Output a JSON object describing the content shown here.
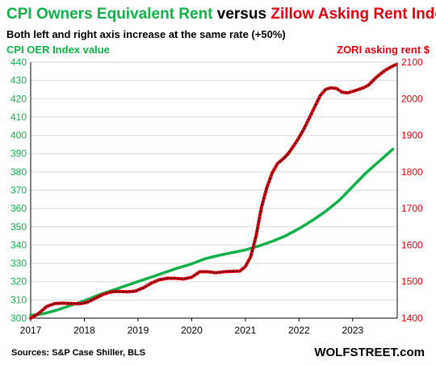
{
  "chart_data": {
    "type": "line",
    "title_parts": {
      "green": "CPI Owners Equivalent Rent",
      "versus": "versus",
      "red": "Zillow Asking Rent Index"
    },
    "subtitle": "Both left and right axis increase at the same rate (+50%)",
    "y_left_label": "CPI OER  Index value",
    "y_right_label": "ZORI asking rent $",
    "source": "Sources: S&P Case Shiller, BLS",
    "brand": "WOLFSTREET.com",
    "x_range": [
      2017.0,
      2023.83
    ],
    "x_ticks": [
      "2017",
      "2018",
      "2019",
      "2020",
      "2021",
      "2022",
      "2023"
    ],
    "y_left_range": [
      300,
      440
    ],
    "y_left_ticks": [
      "300",
      "310",
      "320",
      "330",
      "340",
      "350",
      "360",
      "370",
      "380",
      "390",
      "400",
      "410",
      "420",
      "430",
      "440"
    ],
    "y_right_range": [
      1400,
      2100
    ],
    "y_right_ticks": [
      "1400",
      "1500",
      "1600",
      "1700",
      "1800",
      "1900",
      "2000",
      "2100"
    ],
    "colors": {
      "green": "#12b04a",
      "red": "#e3000f",
      "dots": "#000000",
      "grid": "#d9d9d9"
    },
    "grid": true,
    "series": [
      {
        "name": "CPI Owners Equivalent Rent",
        "axis": "left",
        "color": "#12b04a",
        "x": [
          2017.0,
          2017.25,
          2017.5,
          2017.75,
          2018.0,
          2018.25,
          2018.5,
          2018.75,
          2019.0,
          2019.25,
          2019.5,
          2019.75,
          2020.0,
          2020.25,
          2020.5,
          2020.75,
          2021.0,
          2021.25,
          2021.5,
          2021.75,
          2022.0,
          2022.25,
          2022.5,
          2022.75,
          2023.0,
          2023.25,
          2023.5,
          2023.75
        ],
        "y": [
          301.5,
          302.5,
          304.5,
          307.0,
          309.5,
          312.5,
          315.0,
          317.5,
          320.0,
          322.5,
          325.0,
          327.5,
          329.7,
          332.5,
          334.3,
          335.8,
          337.3,
          339.5,
          342.0,
          345.0,
          349.0,
          353.5,
          358.5,
          364.5,
          372.0,
          379.5,
          386.0,
          392.5
        ]
      },
      {
        "name": "Zillow Asking Rent Index",
        "axis": "right",
        "color": "#e3000f",
        "x": [
          2017.0,
          2017.15,
          2017.3,
          2017.45,
          2017.6,
          2017.75,
          2017.9,
          2018.05,
          2018.2,
          2018.35,
          2018.5,
          2018.65,
          2018.8,
          2018.95,
          2019.1,
          2019.25,
          2019.4,
          2019.55,
          2019.7,
          2019.85,
          2020.0,
          2020.15,
          2020.3,
          2020.45,
          2020.6,
          2020.75,
          2020.9,
          2021.0,
          2021.1,
          2021.2,
          2021.3,
          2021.4,
          2021.5,
          2021.6,
          2021.7,
          2021.8,
          2021.9,
          2022.0,
          2022.1,
          2022.2,
          2022.3,
          2022.4,
          2022.5,
          2022.6,
          2022.7,
          2022.8,
          2022.9,
          2023.0,
          2023.1,
          2023.2,
          2023.3,
          2023.4,
          2023.5,
          2023.6,
          2023.7,
          2023.8
        ],
        "y": [
          1400,
          1413,
          1432,
          1440,
          1441,
          1440,
          1439,
          1443,
          1454,
          1465,
          1472,
          1473,
          1472,
          1474,
          1483,
          1496,
          1505,
          1509,
          1509,
          1507,
          1512,
          1527,
          1527,
          1524,
          1527,
          1528,
          1529,
          1541,
          1568,
          1625,
          1703,
          1757,
          1797,
          1823,
          1835,
          1850,
          1871,
          1894,
          1920,
          1950,
          1980,
          2010,
          2026,
          2030,
          2028,
          2018,
          2016,
          2020,
          2025,
          2030,
          2038,
          2053,
          2066,
          2077,
          2086,
          2093
        ]
      }
    ]
  }
}
